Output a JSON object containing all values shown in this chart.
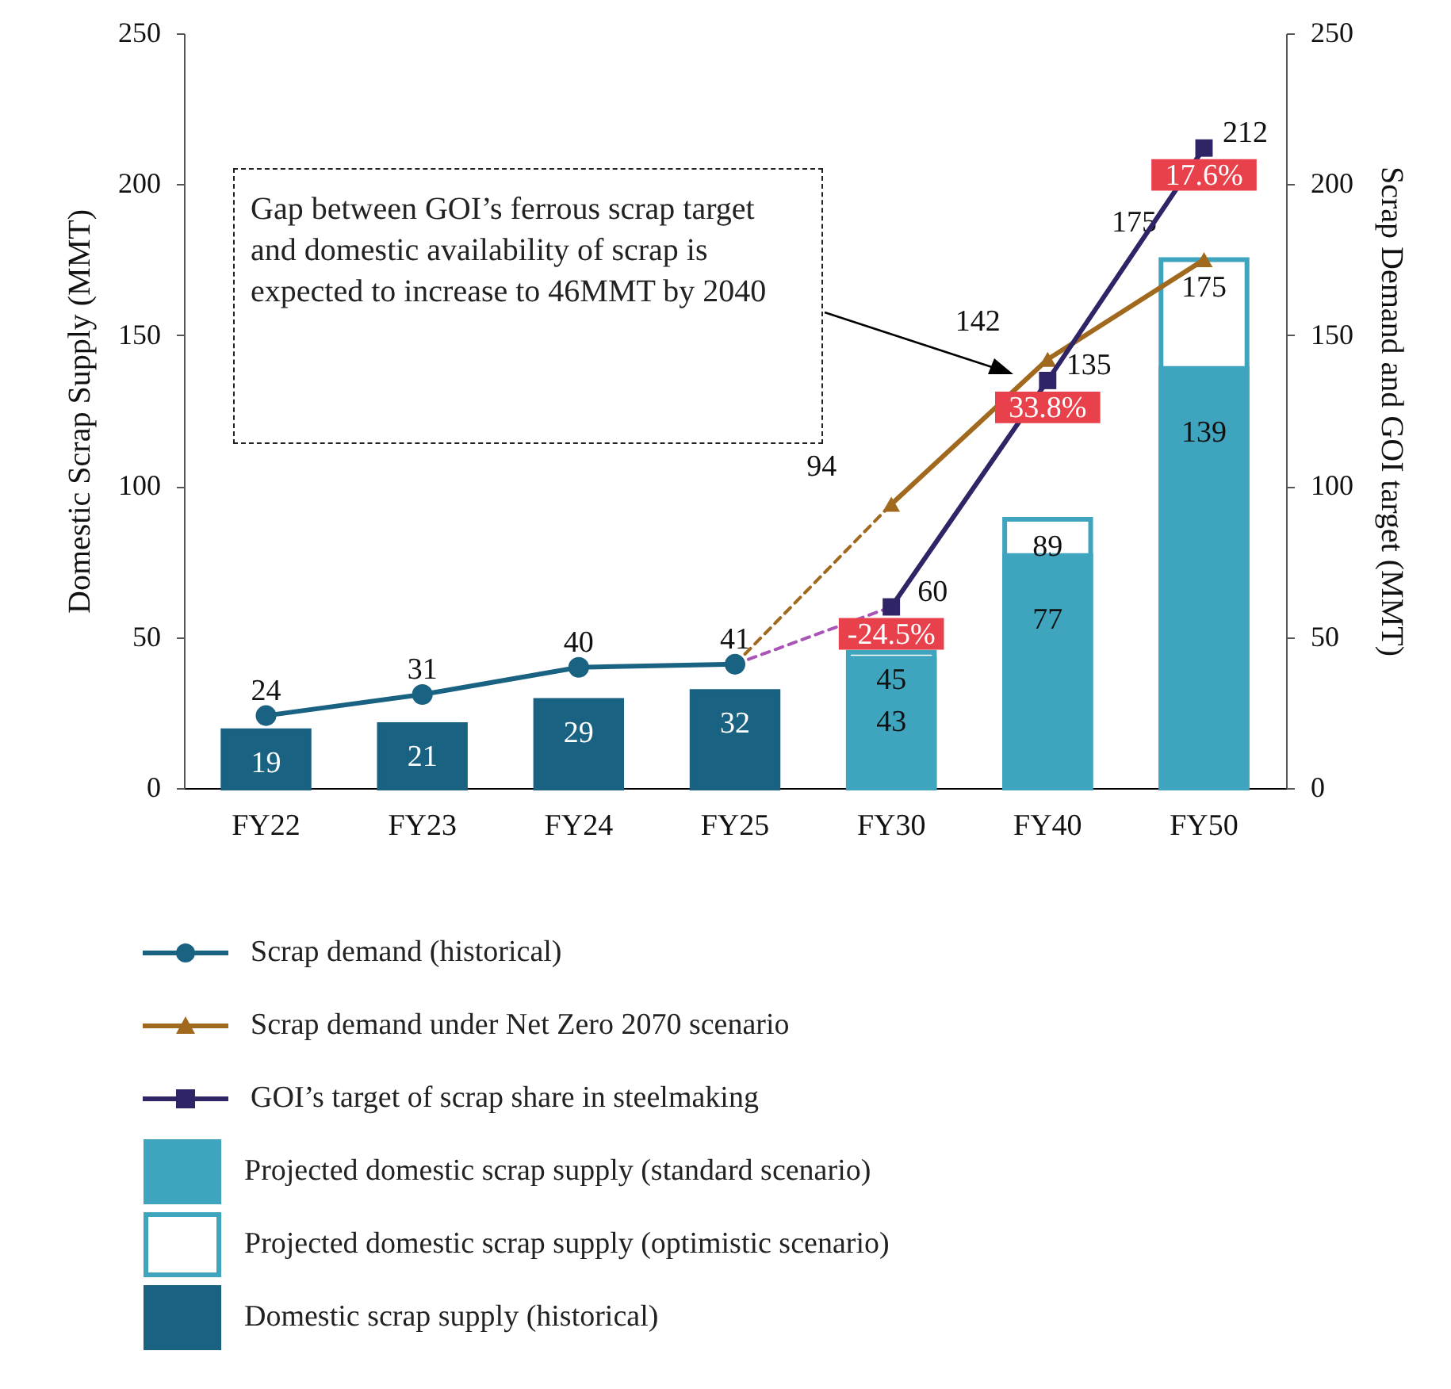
{
  "chart_data": {
    "type": "bar",
    "categories": [
      "FY22",
      "FY23",
      "FY24",
      "FY25",
      "FY30",
      "FY40",
      "FY50"
    ],
    "ylabel": "Domestic Scrap Supply (MMT)",
    "y2label": "Scrap Demand and GOI target (MMT)",
    "ylim": [
      0,
      250
    ],
    "yticks": [
      0,
      50,
      100,
      150,
      200,
      250
    ],
    "y2lim": [
      0,
      250
    ],
    "y2ticks": [
      0,
      50,
      100,
      150,
      200,
      250
    ],
    "grid": false,
    "legend": "bottom",
    "series": [
      {
        "name": "Domestic scrap supply (historical)",
        "type": "bar",
        "color": "#1a6282",
        "values": [
          19,
          21,
          29,
          32,
          null,
          null,
          null
        ],
        "value_labels": [
          "19",
          "21",
          "29",
          "32",
          null,
          null,
          null
        ]
      },
      {
        "name": "Projected domestic scrap supply (optimistic scenario)",
        "type": "bar",
        "color": "#ffffff",
        "values": [
          null,
          null,
          null,
          null,
          45,
          89,
          175
        ],
        "value_labels": [
          null,
          null,
          null,
          null,
          "45",
          "89",
          "175"
        ]
      },
      {
        "name": "Projected domestic scrap supply (standard scenario)",
        "type": "bar",
        "color": "#3fa4be",
        "values": [
          null,
          null,
          null,
          null,
          43,
          77,
          139
        ],
        "value_labels": [
          null,
          null,
          null,
          null,
          "43",
          "77",
          "139"
        ]
      },
      {
        "type": "line",
        "axis": "y2",
        "color": "#a0691e",
        "line_style": "dashed",
        "values": [
          null,
          null,
          null,
          41,
          94,
          null,
          null
        ]
      },
      {
        "type": "line",
        "axis": "y2",
        "color": "#a855b5",
        "line_style": "dashed",
        "values": [
          null,
          null,
          null,
          41,
          60,
          null,
          null
        ]
      },
      {
        "name": "Scrap demand (historical)",
        "type": "line",
        "axis": "y2",
        "color": "#1a6282",
        "line_style": "solid",
        "marker": "circle",
        "values": [
          24,
          31,
          40,
          41,
          null,
          null,
          null
        ],
        "value_labels": [
          "24",
          "31",
          "40",
          "41",
          null,
          null,
          null
        ]
      },
      {
        "name": "Scrap demand under Net Zero 2070 scenario",
        "type": "line",
        "axis": "y2",
        "color": "#a0691e",
        "line_style": "solid",
        "marker": "triangle",
        "values": [
          null,
          null,
          null,
          null,
          94,
          142,
          175
        ],
        "value_labels": [
          null,
          null,
          null,
          null,
          "94",
          "142",
          "175"
        ]
      },
      {
        "name": "GOI’s target of scrap share in steelmaking",
        "type": "line",
        "axis": "y2",
        "color": "#2e2466",
        "line_style": "solid",
        "marker": "square",
        "values": [
          null,
          null,
          null,
          null,
          60,
          135,
          212
        ],
        "value_labels": [
          null,
          null,
          null,
          null,
          "60",
          "135",
          "212"
        ]
      }
    ],
    "annotations": [
      "Gap between GOI’s ferrous scrap target and domestic availability of scrap is expected to increase to 46MMT by 2040",
      {
        "text": "-24.5%",
        "x": "FY30",
        "y": 60
      },
      {
        "text": "33.8%",
        "x": "FY40",
        "y": 135
      },
      {
        "text": "17.6%",
        "x": "FY50",
        "y": 212
      }
    ]
  }
}
